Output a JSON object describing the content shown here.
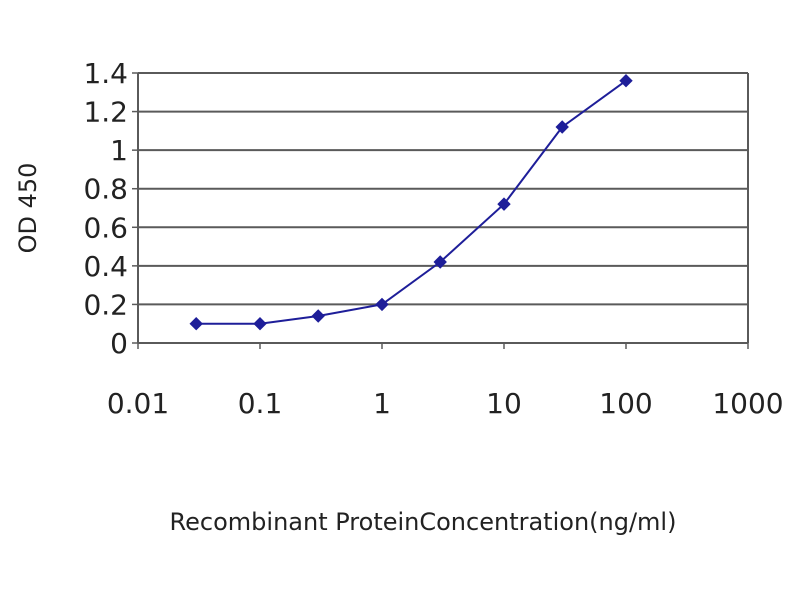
{
  "chart_data": {
    "type": "line",
    "title": "",
    "xlabel": "Recombinant ProteinConcentration(ng/ml)",
    "ylabel": "OD 450",
    "xscale": "log",
    "xlim": [
      0.01,
      1000
    ],
    "ylim": [
      0,
      1.4
    ],
    "grid": true,
    "legend": "none",
    "x_ticks": [
      "0.01",
      "0.1",
      "1",
      "10",
      "100",
      "1000"
    ],
    "y_ticks": [
      "0",
      "0.2",
      "0.4",
      "0.6",
      "0.8",
      "1",
      "1.2",
      "1.4"
    ],
    "series": [
      {
        "color": "#1e1e99",
        "x": [
          0.03,
          0.1,
          0.3,
          1,
          3,
          10,
          30,
          100
        ],
        "y": [
          0.1,
          0.1,
          0.14,
          0.2,
          0.42,
          0.72,
          1.12,
          1.36
        ]
      }
    ]
  }
}
